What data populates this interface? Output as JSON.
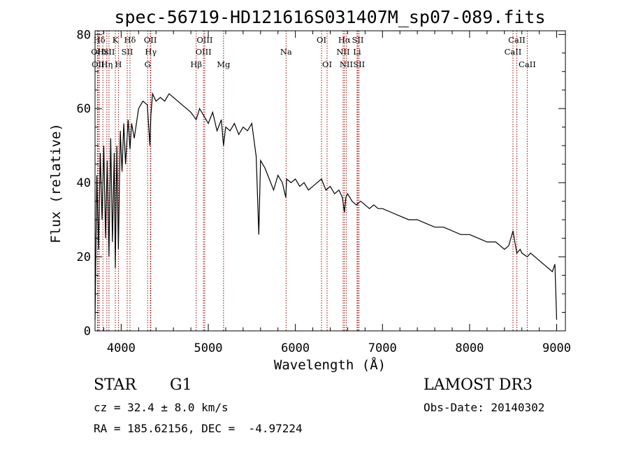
{
  "chart_data": {
    "type": "line",
    "title": "spec-56719-HD121616S031407M_sp07-089.fits",
    "xlabel": "Wavelength (Å)",
    "ylabel": "Flux (relative)",
    "xlim": [
      3700,
      9100
    ],
    "ylim": [
      0,
      81
    ],
    "xticks": [
      4000,
      5000,
      6000,
      7000,
      8000,
      9000
    ],
    "xtick_labels": [
      "4000",
      "5000",
      "6000",
      "7000",
      "8000",
      "9000"
    ],
    "yticks": [
      0,
      20,
      40,
      60,
      80
    ],
    "ytick_labels": [
      "0",
      "20",
      "40",
      "60",
      "80"
    ],
    "grid": false,
    "series": [
      {
        "name": "spectrum",
        "x": [
          3700,
          3720,
          3740,
          3760,
          3780,
          3800,
          3820,
          3840,
          3860,
          3880,
          3900,
          3920,
          3933,
          3950,
          3968,
          3990,
          4010,
          4030,
          4050,
          4080,
          4101,
          4120,
          4150,
          4200,
          4250,
          4300,
          4330,
          4340,
          4360,
          4400,
          4450,
          4500,
          4550,
          4600,
          4650,
          4700,
          4750,
          4800,
          4861,
          4900,
          4950,
          5000,
          5050,
          5100,
          5150,
          5175,
          5200,
          5250,
          5300,
          5350,
          5400,
          5450,
          5500,
          5550,
          5580,
          5600,
          5650,
          5700,
          5750,
          5800,
          5850,
          5890,
          5900,
          5950,
          6000,
          6050,
          6100,
          6150,
          6200,
          6250,
          6300,
          6350,
          6400,
          6450,
          6500,
          6540,
          6563,
          6580,
          6600,
          6650,
          6700,
          6750,
          6800,
          6850,
          6900,
          6950,
          7000,
          7100,
          7200,
          7300,
          7400,
          7500,
          7600,
          7700,
          7800,
          7900,
          8000,
          8100,
          8200,
          8300,
          8400,
          8450,
          8498,
          8520,
          8542,
          8580,
          8600,
          8662,
          8700,
          8750,
          8800,
          8850,
          8900,
          8950,
          8980,
          9000
        ],
        "y": [
          3,
          42,
          22,
          48,
          30,
          50,
          25,
          46,
          20,
          52,
          24,
          48,
          17,
          50,
          22,
          54,
          43,
          56,
          45,
          57,
          49,
          56,
          52,
          60,
          62,
          61,
          50,
          58,
          64,
          62,
          63,
          62,
          64,
          63,
          62,
          61,
          60,
          59,
          57,
          60,
          58,
          56,
          59,
          54,
          57,
          50,
          55,
          54,
          56,
          53,
          55,
          54,
          56,
          47,
          26,
          46,
          44,
          41,
          38,
          42,
          40,
          36,
          41,
          40,
          41,
          39,
          40,
          38,
          39,
          40,
          41,
          38,
          39,
          37,
          38,
          36,
          32,
          36,
          37,
          35,
          34,
          35,
          34,
          33,
          34,
          33,
          33,
          32,
          31,
          30,
          30,
          29,
          28,
          28,
          27,
          26,
          26,
          25,
          24,
          24,
          22,
          23,
          27,
          24,
          21,
          22,
          21,
          20,
          21,
          20,
          19,
          18,
          17,
          16,
          18,
          3
        ]
      }
    ],
    "line_markers": [
      {
        "label": "Hδ",
        "x": 3750,
        "row": 0
      },
      {
        "label": "OII",
        "x": 3728,
        "row": 1
      },
      {
        "label": "OII",
        "x": 3735,
        "row": 2
      },
      {
        "label": "Hε",
        "x": 3790,
        "row": 1
      },
      {
        "label": "Hη",
        "x": 3835,
        "row": 2
      },
      {
        "label": "K",
        "x": 3933,
        "row": 0
      },
      {
        "label": "SII",
        "x": 3860,
        "row": 1
      },
      {
        "label": "H",
        "x": 3968,
        "row": 2
      },
      {
        "label": "Hδ",
        "x": 4101,
        "row": 0
      },
      {
        "label": "SII",
        "x": 4069,
        "row": 1
      },
      {
        "label": "OII",
        "x": 4335,
        "row": 0
      },
      {
        "label": "Hγ",
        "x": 4340,
        "row": 1
      },
      {
        "label": "G",
        "x": 4304,
        "row": 2
      },
      {
        "label": "OIII",
        "x": 4959,
        "row": 0
      },
      {
        "label": "OIII",
        "x": 4945,
        "row": 1
      },
      {
        "label": "Hβ",
        "x": 4861,
        "row": 2
      },
      {
        "label": "Mg",
        "x": 5175,
        "row": 2
      },
      {
        "label": "Na",
        "x": 5893,
        "row": 1
      },
      {
        "label": "OI",
        "x": 6300,
        "row": 0
      },
      {
        "label": "OI",
        "x": 6364,
        "row": 2
      },
      {
        "label": "Hα",
        "x": 6563,
        "row": 0
      },
      {
        "label": "NII",
        "x": 6548,
        "row": 1
      },
      {
        "label": "NII",
        "x": 6584,
        "row": 2
      },
      {
        "label": "SII",
        "x": 6717,
        "row": 0
      },
      {
        "label": "Li",
        "x": 6708,
        "row": 1
      },
      {
        "label": "SII",
        "x": 6731,
        "row": 2
      },
      {
        "label": "CaII",
        "x": 8542,
        "row": 0
      },
      {
        "label": "CaII",
        "x": 8498,
        "row": 1
      },
      {
        "label": "CaII",
        "x": 8662,
        "row": 2
      }
    ],
    "marker_color": "#a00000",
    "line_color": "#000000"
  },
  "info": {
    "object_class": "STAR",
    "subclass": "G1",
    "survey": "LAMOST DR3",
    "redshift": "cz = 32.4 ± 8.0 km/s",
    "obs_date": "Obs-Date: 20140302",
    "coords": "RA = 185.62156, DEC =  -4.97224"
  }
}
